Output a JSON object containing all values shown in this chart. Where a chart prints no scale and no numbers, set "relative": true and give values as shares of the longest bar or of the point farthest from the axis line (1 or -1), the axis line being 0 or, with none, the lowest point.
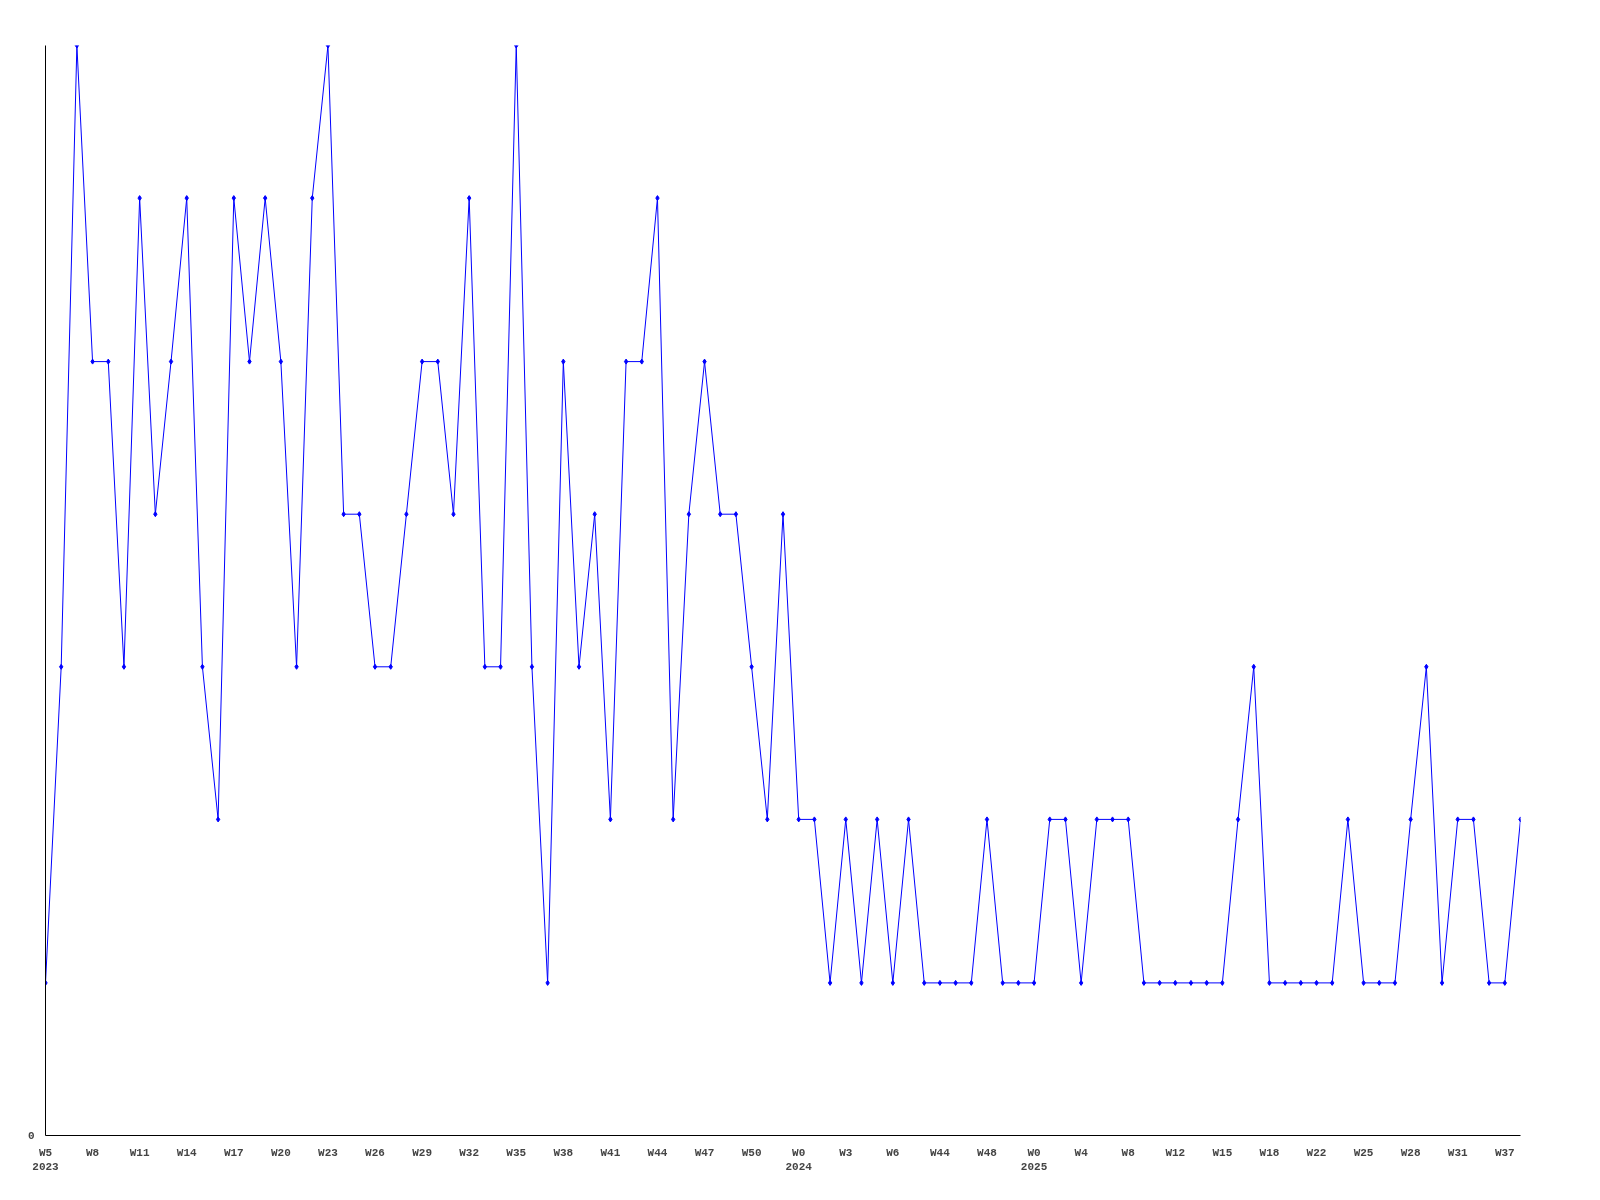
{
  "chart_data": {
    "type": "line",
    "relative": true,
    "annotations": [
      "0"
    ],
    "color": "#0000ff",
    "marker": "diamond",
    "line_style": "solid",
    "grid": false,
    "categories": [
      "W5\n2023",
      null,
      null,
      "W8",
      null,
      null,
      "W11",
      null,
      null,
      "W14",
      null,
      null,
      "W17",
      null,
      null,
      "W20",
      null,
      null,
      "W23",
      null,
      null,
      "W26",
      null,
      null,
      "W29",
      null,
      null,
      "W32",
      null,
      null,
      "W35",
      null,
      null,
      "W38",
      null,
      null,
      "W41",
      null,
      null,
      "W44",
      null,
      null,
      "W47",
      null,
      null,
      "W50",
      null,
      null,
      "W0\n2024",
      null,
      null,
      "W3",
      null,
      null,
      "W6",
      null,
      null,
      "W44",
      null,
      null,
      "W48",
      null,
      null,
      "W0\n2025",
      null,
      null,
      "W4",
      null,
      null,
      "W8",
      null,
      null,
      "W12",
      null,
      null,
      "W15",
      null,
      null,
      "W18",
      null,
      null,
      "W22",
      null,
      null,
      "W25",
      null,
      null,
      "W28",
      null,
      null,
      "W31",
      null,
      null,
      "W37",
      null
    ],
    "values": [
      0.14,
      0.43,
      1,
      0.71,
      0.71,
      0.43,
      0.86,
      0.57,
      0.71,
      0.86,
      0.43,
      0.29,
      0.86,
      0.71,
      0.86,
      0.71,
      0.43,
      0.86,
      1,
      0.57,
      0.57,
      0.43,
      0.43,
      0.57,
      0.71,
      0.71,
      0.57,
      0.86,
      0.43,
      0.43,
      1,
      0.43,
      0.14,
      0.71,
      0.43,
      0.57,
      0.29,
      0.71,
      0.71,
      0.86,
      0.29,
      0.57,
      0.71,
      0.57,
      0.57,
      0.43,
      0.29,
      0.57,
      0.29,
      0.29,
      0.14,
      0.29,
      0.14,
      0.29,
      0.14,
      0.29,
      0.14,
      0.14,
      0.14,
      0.14,
      0.29,
      0.14,
      0.14,
      0.14,
      0.29,
      0.29,
      0.14,
      0.29,
      0.29,
      0.29,
      0.14,
      0.14,
      0.14,
      0.14,
      0.14,
      0.14,
      0.29,
      0.43,
      0.14,
      0.14,
      0.14,
      0.14,
      0.14,
      0.29,
      0.14,
      0.14,
      0.14,
      0.29,
      0.43,
      0.14,
      0.29,
      0.29,
      0.14,
      0.14,
      0.29
    ]
  }
}
